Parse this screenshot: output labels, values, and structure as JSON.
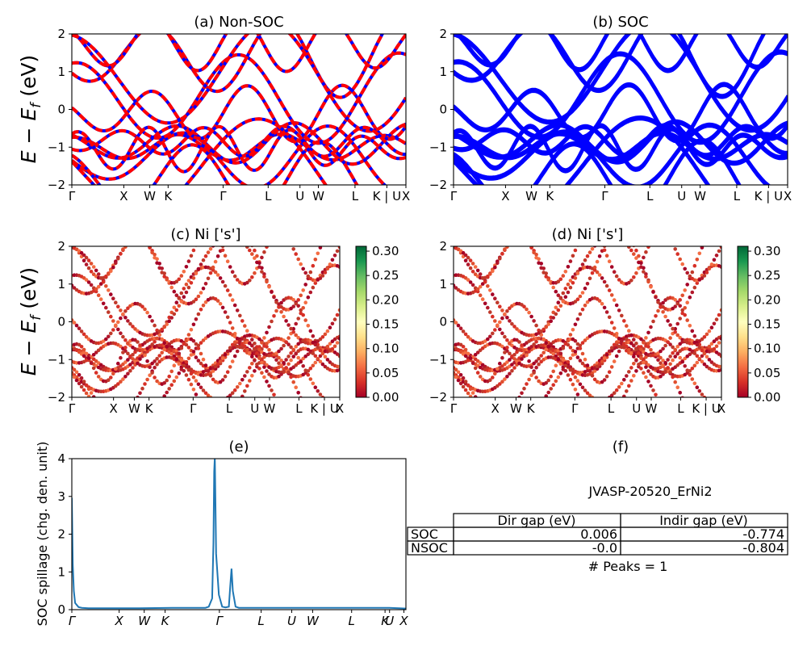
{
  "colors": {
    "nonsoc_red": "#ff0000",
    "nonsoc_blue": "#0000ff",
    "soc_blue": "#0000ff",
    "spillage": "#1f77b4"
  },
  "y_axis_label": "E − E",
  "y_axis_label_sub": "f",
  "y_axis_label_unit": " (eV)",
  "kpath_labels": [
    "Γ",
    "X",
    "W",
    "K",
    "Γ",
    "L",
    "U",
    "W",
    "L",
    "K | U",
    "X"
  ],
  "kpath_labels_italic": [
    "Γ",
    "X",
    "W",
    "K",
    "Γ",
    "L",
    "U",
    "W",
    "L",
    "K",
    "U",
    "X"
  ],
  "band_yticks": [
    "−2",
    "−1",
    "0",
    "1",
    "2"
  ],
  "colorbar_ticks": [
    "0.00",
    "0.05",
    "0.10",
    "0.15",
    "0.20",
    "0.25",
    "0.30"
  ],
  "panel_a": {
    "title": "(a) Non-SOC"
  },
  "panel_b": {
    "title": "(b) SOC"
  },
  "panel_c": {
    "title": "(c)  Ni ['s']"
  },
  "panel_d": {
    "title": "(d) Ni ['s']"
  },
  "panel_e": {
    "title": "(e)",
    "ylabel": "SOC spillage (chg. den. unit)",
    "yticks": [
      "0",
      "1",
      "2",
      "3",
      "4"
    ]
  },
  "panel_f": {
    "title": "(f)",
    "material": "JVASP-20520_ErNi2",
    "table_headers": [
      "Dir gap (eV)",
      "Indir gap (eV)"
    ],
    "rows": [
      {
        "label": "SOC",
        "dir": "0.006",
        "indir": "-0.774"
      },
      {
        "label": "NSOC",
        "dir": "-0.0",
        "indir": "-0.804"
      }
    ],
    "peaks_text": "# Peaks = 1"
  },
  "chart_data": [
    {
      "type": "line",
      "title": "(a) Non-SOC",
      "ylabel": "E − E_f (eV)",
      "ylim": [
        -2,
        2
      ],
      "x_ticks": [
        "Γ",
        "X",
        "W",
        "K",
        "Γ",
        "L",
        "U",
        "W",
        "L",
        "K | U",
        "X"
      ],
      "y_ticks": [
        -2,
        -1,
        0,
        1,
        2
      ],
      "series": [
        {
          "name": "",
          "description": "band structure (blue solid with red dashed overlay)"
        }
      ]
    },
    {
      "type": "line",
      "title": "(b) SOC",
      "ylim": [
        -2,
        2
      ],
      "x_ticks": [
        "Γ",
        "X",
        "W",
        "K",
        "Γ",
        "L",
        "U",
        "W",
        "L",
        "K | U",
        "X"
      ],
      "y_ticks": [
        -2,
        -1,
        0,
        1,
        2
      ]
    },
    {
      "type": "scatter",
      "title": "(c)  Ni ['s']",
      "ylim": [
        -2,
        2
      ],
      "colorbar_range": [
        0,
        0.31
      ]
    },
    {
      "type": "scatter",
      "title": "(d) Ni ['s']",
      "ylim": [
        -2,
        2
      ],
      "colorbar_range": [
        0,
        0.31
      ]
    },
    {
      "type": "line",
      "title": "(e)",
      "ylabel": "SOC spillage (chg. den. unit)",
      "ylim": [
        0,
        4.05
      ],
      "x_ticks": [
        "Γ",
        "X",
        "W",
        "K",
        "Γ",
        "L",
        "U",
        "W",
        "L",
        "K",
        "U",
        "X"
      ],
      "series": [
        {
          "name": "",
          "x": [
            0,
            0.3,
            0.6,
            1,
            2,
            3,
            5,
            10,
            20,
            30,
            40,
            41,
            42,
            42.4,
            42.6,
            42.8,
            43.2,
            44,
            45,
            46,
            47,
            47.4,
            47.8,
            48.2,
            49,
            50,
            60,
            70,
            80,
            90,
            95,
            98,
            100
          ],
          "y": [
            3.0,
            1.2,
            0.5,
            0.18,
            0.07,
            0.05,
            0.04,
            0.04,
            0.04,
            0.05,
            0.05,
            0.08,
            0.3,
            1.8,
            3.7,
            4.1,
            1.5,
            0.4,
            0.08,
            0.06,
            0.08,
            0.6,
            1.1,
            0.5,
            0.08,
            0.05,
            0.05,
            0.05,
            0.05,
            0.05,
            0.05,
            0.04,
            0.03
          ]
        }
      ]
    },
    {
      "type": "table",
      "title": "(f)",
      "subtitle": "JVASP-20520_ErNi2",
      "columns": [
        "",
        "Dir gap (eV)",
        "Indir gap (eV)"
      ],
      "rows": [
        [
          "SOC",
          "0.006",
          "-0.774"
        ],
        [
          "NSOC",
          "-0.0",
          "-0.804"
        ]
      ],
      "annotation": "# Peaks = 1"
    }
  ]
}
